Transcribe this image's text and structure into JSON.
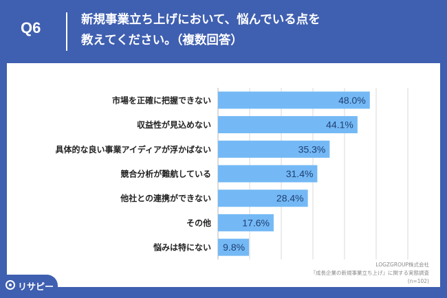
{
  "header": {
    "question_label": "Q6",
    "title_line1": "新規事業立ち上げにおいて、悩んでいる点を",
    "title_line2": "教えてください。（複数回答）"
  },
  "footer": {
    "line1": "LOGZGROUP株式会社",
    "line2": "『成長企業の新規事業立ち上げ』に関する実態調査",
    "line3": "(n=102)"
  },
  "logo": {
    "text": "リサピー",
    "icon": "risapi-logo-icon"
  },
  "colors": {
    "background": "#3f5fb0",
    "bar": "#74b9f5",
    "panel": "#ffffff"
  },
  "chart_data": {
    "type": "bar",
    "orientation": "horizontal",
    "categories": [
      "市場を正確に把握できない",
      "収益性が見込めない",
      "具体的な良い事業アイディアが浮かばない",
      "競合分析が難航している",
      "他社との連携ができない",
      "その他",
      "悩みは特にない"
    ],
    "values": [
      48.0,
      44.1,
      35.3,
      31.4,
      28.4,
      17.6,
      9.8
    ],
    "value_labels": [
      "48.0%",
      "44.1%",
      "35.3%",
      "31.4%",
      "28.4%",
      "17.6%",
      "9.8%"
    ],
    "xlim": [
      0,
      60
    ],
    "grid": true
  }
}
